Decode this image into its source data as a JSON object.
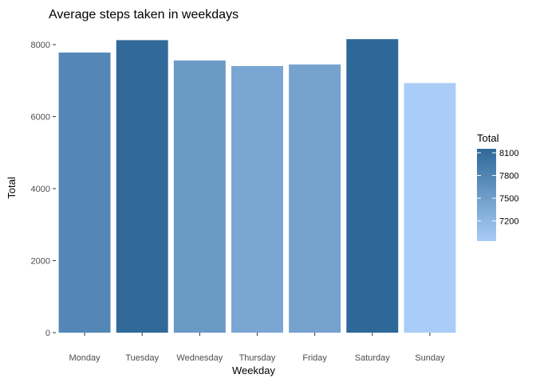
{
  "chart_data": {
    "type": "bar",
    "title": "Average steps taken in weekdays",
    "xlabel": "Weekday",
    "ylabel": "Total",
    "categories": [
      "Monday",
      "Tuesday",
      "Wednesday",
      "Thursday",
      "Friday",
      "Saturday",
      "Sunday"
    ],
    "values": [
      7780,
      8125,
      7559,
      7406,
      7448,
      8153,
      6933
    ],
    "ylim": [
      0,
      8400
    ],
    "yticks": [
      0,
      2000,
      4000,
      6000,
      8000
    ],
    "grid": false,
    "legend": {
      "title": "Total",
      "placement": "right",
      "ticks": [
        7200,
        7500,
        7800,
        8100
      ],
      "range": [
        6933,
        8153
      ],
      "color_low": "#a9cdf7",
      "color_high": "#2e6898"
    }
  }
}
